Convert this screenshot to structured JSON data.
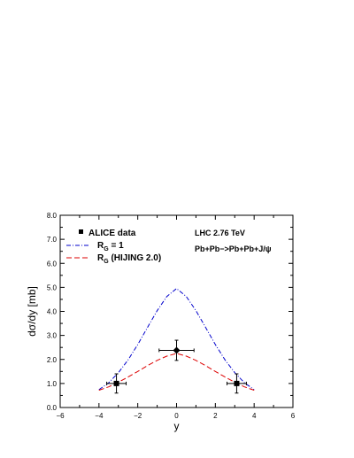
{
  "chart_data": {
    "type": "line",
    "xlabel": "y",
    "ylabel": "dσ/dy [mb]",
    "xlim": [
      -6,
      6
    ],
    "ylim": [
      0,
      8
    ],
    "x_ticks": [
      -6,
      -4,
      -2,
      0,
      2,
      4,
      6
    ],
    "x_tick_labels": [
      "−6",
      "−4",
      "−2",
      "0",
      "2",
      "4",
      "6"
    ],
    "y_ticks": [
      0,
      1,
      2,
      3,
      4,
      5,
      6,
      7,
      8
    ],
    "y_tick_labels": [
      "0.0",
      "1.0",
      "2.0",
      "3.0",
      "4.0",
      "5.0",
      "6.0",
      "7.0",
      "8.0"
    ],
    "annotations": [
      "LHC 2.76 TeV",
      "Pb+Pb−>Pb+Pb+J/ψ"
    ],
    "legend": {
      "placement": "top-left",
      "entries": [
        {
          "label": "ALICE data",
          "style": "marker"
        },
        {
          "label_main": "R",
          "label_sub": "G",
          "label_rest": " = 1",
          "style": "dash-dot",
          "color": "#0000cc"
        },
        {
          "label_main": "R",
          "label_sub": "G",
          "label_rest": " (HIJING 2.0)",
          "style": "dash",
          "color": "#dd0000"
        }
      ]
    },
    "series": [
      {
        "label_key": "rg1",
        "color": "#0000cc",
        "style": "dash-dot",
        "x": [
          -4.0,
          -3.5,
          -3.0,
          -2.5,
          -2.0,
          -1.5,
          -1.0,
          -0.5,
          0.0,
          0.5,
          1.0,
          1.5,
          2.0,
          2.5,
          3.0,
          3.5,
          4.0
        ],
        "values": [
          0.74,
          1.03,
          1.45,
          1.98,
          2.62,
          3.33,
          4.03,
          4.62,
          4.95,
          4.62,
          4.03,
          3.33,
          2.62,
          1.98,
          1.45,
          1.03,
          0.74
        ]
      },
      {
        "label_key": "hijing",
        "color": "#dd0000",
        "style": "dash",
        "x": [
          -4.0,
          -3.5,
          -3.0,
          -2.5,
          -2.0,
          -1.5,
          -1.0,
          -0.5,
          0.0,
          0.5,
          1.0,
          1.5,
          2.0,
          2.5,
          3.0,
          3.5,
          4.0
        ],
        "values": [
          0.72,
          0.86,
          1.05,
          1.27,
          1.5,
          1.74,
          1.96,
          2.14,
          2.25,
          2.14,
          1.96,
          1.74,
          1.5,
          1.27,
          1.05,
          0.86,
          0.72
        ]
      }
    ],
    "data_points": {
      "label": "ALICE data",
      "points": [
        {
          "x": -3.1,
          "y": 1.0,
          "xerr": 0.5,
          "yerr": 0.4
        },
        {
          "x": 0.0,
          "y": 2.38,
          "xerr": 0.9,
          "yerr": 0.42
        },
        {
          "x": 3.1,
          "y": 1.0,
          "xerr": 0.5,
          "yerr": 0.4
        }
      ]
    }
  }
}
